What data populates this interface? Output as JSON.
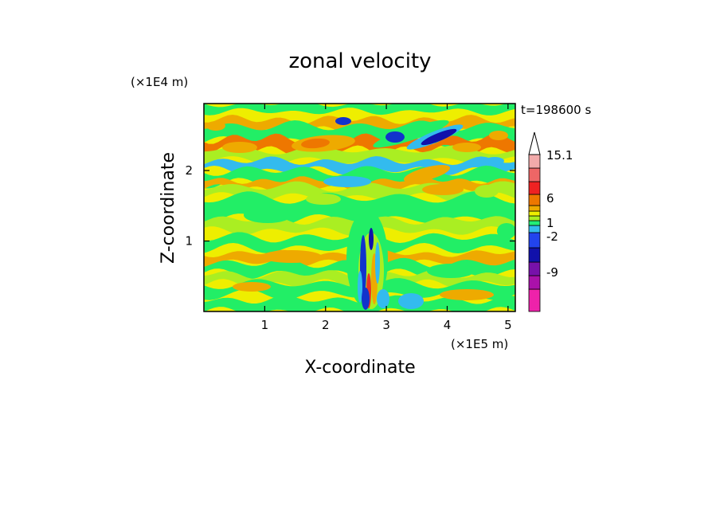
{
  "chart_data": {
    "type": "heatmap",
    "title": "zonal velocity",
    "xlabel": "X-coordinate",
    "ylabel": "Z-coordinate",
    "x_unit": "(×1E5 m)",
    "y_unit": "(×1E4 m)",
    "time_label": "t=198600 s",
    "xlim": [
      0,
      5.12
    ],
    "ylim": [
      0,
      2.95
    ],
    "x_ticks": [
      1,
      2,
      3,
      4,
      5
    ],
    "y_ticks": [
      1,
      2
    ],
    "x_tick_labels": [
      "1",
      "2",
      "3",
      "4",
      "5"
    ],
    "y_tick_labels": [
      "1",
      "2"
    ],
    "colorbar": {
      "labels": [
        {
          "text": "15.1",
          "value": 15.1
        },
        {
          "text": "6",
          "value": 6
        },
        {
          "text": "1",
          "value": 1
        },
        {
          "text": "-2",
          "value": -2
        },
        {
          "text": "-9",
          "value": -9
        }
      ],
      "colors": [
        "#ee22aa",
        "#aa11aa",
        "#7711aa",
        "#1111aa",
        "#2244ee",
        "#33bbee",
        "#22ee77",
        "#aaee22",
        "#eeee00",
        "#eeaa00",
        "#ee7700",
        "#ee2222",
        "#ee6666",
        "#f2aaaa"
      ],
      "top_arrow_color": "#ffffff"
    },
    "field_colors": {
      "background": "#eeee00",
      "green": "#22ee66",
      "yellow_green": "#aaee22",
      "orange": "#eeaa00",
      "dark_orange": "#ee7700",
      "cyan": "#33bbee",
      "blue": "#1133cc",
      "navy": "#1111aa",
      "red": "#ee3322"
    }
  }
}
